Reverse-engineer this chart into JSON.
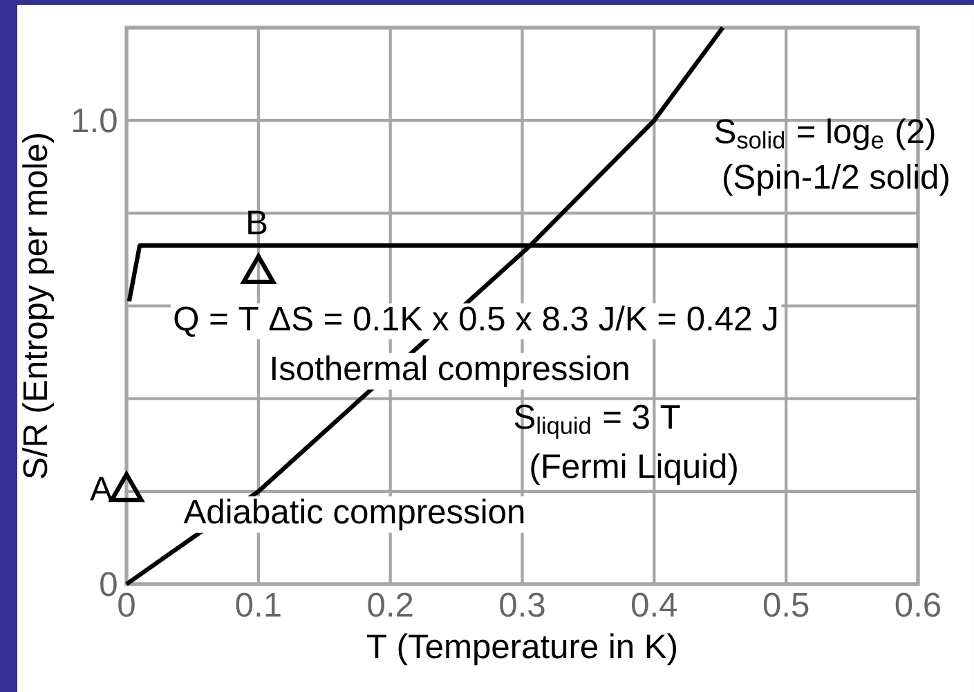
{
  "chart_data": {
    "type": "line",
    "xlabel": "T (Temperature in K)",
    "ylabel": "S/R (Entropy per mole)",
    "xlim": [
      0,
      0.6
    ],
    "ylim": [
      0,
      1.2
    ],
    "xticks": [
      0,
      0.1,
      0.2,
      0.3,
      0.4,
      0.5,
      0.6
    ],
    "yticks": [
      0,
      {
        "value": 0.2,
        "label": null
      },
      {
        "value": 0.4,
        "label": null
      },
      {
        "value": 0.6,
        "label": null
      },
      {
        "value": 0.8,
        "label": null
      },
      {
        "value": 1.0,
        "label": "1.0"
      }
    ],
    "grid": true,
    "series": [
      {
        "color": "#000000",
        "x": [
          0,
          0.1,
          0.306,
          0.4,
          0.452
        ],
        "values": [
          0,
          0.2,
          0.73,
          1.0,
          1.2
        ]
      },
      {
        "color": "#000000",
        "x": [
          0.002,
          0.01,
          0.6
        ],
        "values": [
          0.61,
          0.73,
          0.73
        ]
      },
      {
        "type": "scatter",
        "color": "#000000",
        "marker": "triangle",
        "x": [
          0,
          0.1
        ],
        "values": [
          0.2,
          0.67
        ]
      }
    ],
    "annotations": [
      "A",
      "B",
      "Q = T ΔS = 0.1K x 0.5 x 8.3 J/K = 0.42 J",
      "Isothermal compression",
      "Adiabatic compression",
      "S$_{liquid}$ = 3 T",
      "(Fermi Liquid)",
      "S$_{solid}$ = log$_{e}$ (2)",
      "(Spin-1/2 solid)"
    ]
  }
}
